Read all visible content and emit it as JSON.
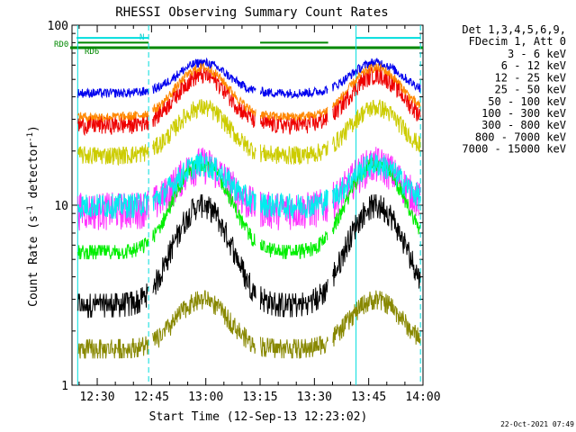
{
  "chart_data": {
    "type": "line",
    "title": "RHESSI Observing Summary Count Rates",
    "xlabel": "Start Time (12-Sep-13 12:23:02)",
    "ylabel_main": "Count Rate (s",
    "ylabel_sup": "-1",
    "ylabel_rest": " detector",
    "ylabel_sup2": "-1",
    "ylabel_end": ")",
    "x_range_min": [
      23.03,
      120
    ],
    "y_log": true,
    "ylim": [
      1,
      100
    ],
    "x_ticks": [
      {
        "label": "12:30",
        "min": 30
      },
      {
        "label": "12:45",
        "min": 45
      },
      {
        "label": "13:00",
        "min": 60
      },
      {
        "label": "13:15",
        "min": 75
      },
      {
        "label": "13:30",
        "min": 90
      },
      {
        "label": "13:45",
        "min": 105
      },
      {
        "label": "14:00",
        "min": 120
      }
    ],
    "y_ticks": [
      {
        "label": "1",
        "value": 1
      },
      {
        "label": "10",
        "value": 10
      },
      {
        "label": "100",
        "value": 100
      }
    ],
    "legend_header": [
      "Det 1,3,4,5,6,9,",
      "FDecim 1, Att 0"
    ],
    "series": [
      {
        "name": "3 - 6 keV",
        "color": "#000000",
        "low": 2.8,
        "high": 10,
        "noise": 0.2,
        "step": 0.5
      },
      {
        "name": "6 - 12 keV",
        "color": "#ff33ff",
        "low": 9.5,
        "high": 17,
        "noise": 0.12,
        "step": 0
      },
      {
        "name": "12 - 25 keV",
        "color": "#00ee00",
        "low": 5.5,
        "high": 17,
        "noise": 0.1,
        "step": 0.3
      },
      {
        "name": "25 - 50 keV",
        "color": "#00eeee",
        "low": 10,
        "high": 17,
        "noise": 0.08,
        "step": 0
      },
      {
        "name": "50 - 100 keV",
        "color": "#cccc00",
        "low": 19,
        "high": 35,
        "noise": 0.06,
        "step": 0
      },
      {
        "name": "100 - 300 keV",
        "color": "#ee0000",
        "low": 28,
        "high": 53,
        "noise": 0.06,
        "step": 0
      },
      {
        "name": "300 - 800 keV",
        "color": "#0000ee",
        "low": 42,
        "high": 62,
        "noise": 0.03,
        "step": 0
      },
      {
        "name": "800 - 7000 keV",
        "color": "#ff8800",
        "low": 31,
        "high": 58,
        "noise": 0.03,
        "step": 0
      },
      {
        "name": "7000 - 15000 keV",
        "color": "#888800",
        "low": 1.6,
        "high": 3,
        "noise": 0.15,
        "step": 0.4
      }
    ],
    "gaps_min": [
      [
        44.2,
        45.3
      ],
      [
        73.8,
        75.0
      ],
      [
        93.8,
        95.0
      ]
    ],
    "orbit_segments_min": [
      [
        24.6,
        44.2
      ],
      [
        75,
        93.8
      ]
    ],
    "orbit_peaks_min": [
      59,
      107
    ],
    "annotations": {
      "rd0_label": "RD0",
      "rd6_label": "RD6",
      "n_label": "N"
    },
    "footer_date": "22-Oct-2021 07:49"
  }
}
